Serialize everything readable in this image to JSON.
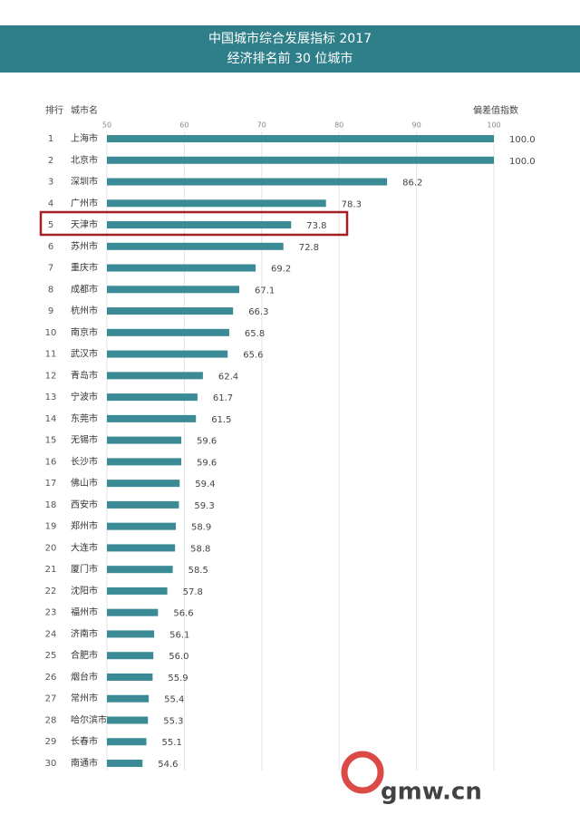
{
  "chart_data": {
    "type": "bar",
    "orientation": "horizontal",
    "title": "中国城市综合发展指标 2017",
    "subtitle": "经济排名前 30 位城市",
    "rank_header": "排行",
    "category_header": "城市名",
    "value_header": "偏差值指数",
    "ranks": [
      1,
      2,
      3,
      4,
      5,
      6,
      7,
      8,
      9,
      10,
      11,
      12,
      13,
      14,
      15,
      16,
      17,
      18,
      19,
      20,
      21,
      22,
      23,
      24,
      25,
      26,
      27,
      28,
      29,
      30
    ],
    "categories": [
      "上海市",
      "北京市",
      "深圳市",
      "广州市",
      "天津市",
      "苏州市",
      "重庆市",
      "成都市",
      "杭州市",
      "南京市",
      "武汉市",
      "青岛市",
      "宁波市",
      "东莞市",
      "无锡市",
      "长沙市",
      "佛山市",
      "西安市",
      "郑州市",
      "大连市",
      "厦门市",
      "沈阳市",
      "福州市",
      "济南市",
      "合肥市",
      "烟台市",
      "常州市",
      "哈尔滨市",
      "长春市",
      "南通市"
    ],
    "values": [
      100,
      100,
      86.2,
      78.3,
      73.8,
      72.8,
      69.2,
      67.1,
      66.3,
      65.8,
      65.6,
      62.4,
      61.7,
      61.5,
      59.6,
      59.6,
      59.4,
      59.3,
      58.9,
      58.8,
      58.5,
      57.8,
      56.6,
      56.1,
      56,
      55.9,
      55.4,
      55.3,
      55.1,
      54.6
    ],
    "value_labels": [
      "100.0",
      "100.0",
      "86.2",
      "78.3",
      "73.8",
      "72.8",
      "69.2",
      "67.1",
      "66.3",
      "65.8",
      "65.6",
      "62.4",
      "61.7",
      "61.5",
      "59.6",
      "59.6",
      "59.4",
      "59.3",
      "58.9",
      "58.8",
      "58.5",
      "57.8",
      "56.6",
      "56.1",
      "56.0",
      "55.9",
      "55.4",
      "55.3",
      "55.1",
      "54.6"
    ],
    "color": "#3a8b96",
    "xlim": [
      50,
      100
    ],
    "xticks": [
      50,
      60,
      70,
      80,
      90,
      100
    ],
    "grid": true,
    "watermark": "gmw.cn"
  }
}
